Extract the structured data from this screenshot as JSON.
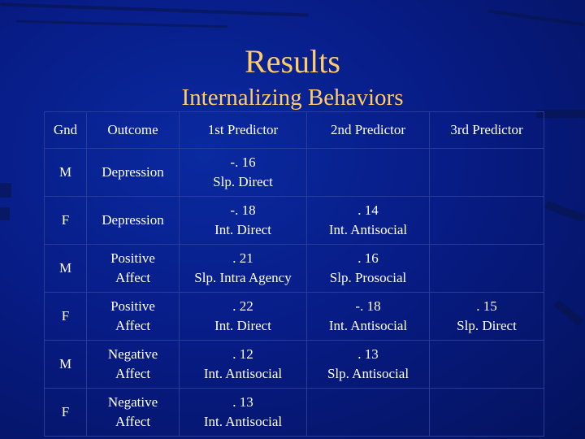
{
  "title": "Results",
  "subtitle": "Internalizing Behaviors",
  "columns": [
    "Gnd",
    "Outcome",
    "1st Predictor",
    "2nd Predictor",
    "3rd Predictor"
  ],
  "rows": [
    {
      "gnd": "M",
      "outcome": [
        "Depression"
      ],
      "p1": {
        "value": "-. 16",
        "label": "Slp. Direct"
      },
      "p2": {
        "value": "",
        "label": ""
      },
      "p3": {
        "value": "",
        "label": ""
      }
    },
    {
      "gnd": "F",
      "outcome": [
        "Depression"
      ],
      "p1": {
        "value": "-. 18",
        "label": "Int. Direct"
      },
      "p2": {
        "value": ". 14",
        "label": "Int. Antisocial"
      },
      "p3": {
        "value": "",
        "label": ""
      }
    },
    {
      "gnd": "M",
      "outcome": [
        "Positive",
        "Affect"
      ],
      "p1": {
        "value": ". 21",
        "label": "Slp. Intra Agency"
      },
      "p2": {
        "value": ". 16",
        "label": "Slp. Prosocial"
      },
      "p3": {
        "value": "",
        "label": ""
      }
    },
    {
      "gnd": "F",
      "outcome": [
        "Positive",
        "Affect"
      ],
      "p1": {
        "value": ". 22",
        "label": "Int. Direct"
      },
      "p2": {
        "value": "-. 18",
        "label": "Int. Antisocial"
      },
      "p3": {
        "value": ". 15",
        "label": "Slp. Direct"
      }
    },
    {
      "gnd": "M",
      "outcome": [
        "Negative",
        "Affect"
      ],
      "p1": {
        "value": ". 12",
        "label": "Int. Antisocial"
      },
      "p2": {
        "value": ". 13",
        "label": "Slp. Antisocial"
      },
      "p3": {
        "value": "",
        "label": ""
      }
    },
    {
      "gnd": "F",
      "outcome": [
        "Negative",
        "Affect"
      ],
      "p1": {
        "value": ". 13",
        "label": "Int. Antisocial"
      },
      "p2": {
        "value": "",
        "label": ""
      },
      "p3": {
        "value": "",
        "label": ""
      }
    }
  ],
  "colors": {
    "background": "#071c86",
    "title": "#ffcc66",
    "text": "#ffffff",
    "grid": "#2a3c99"
  }
}
